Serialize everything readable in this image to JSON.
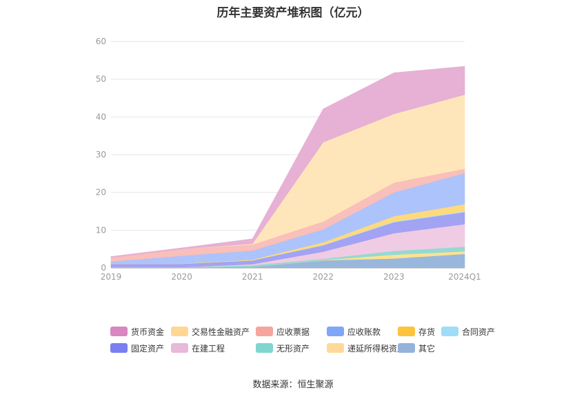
{
  "chart_data": {
    "type": "area",
    "stacked": true,
    "title": "历年主要资产堆积图（亿元）",
    "categories": [
      "2019",
      "2020",
      "2021",
      "2022",
      "2023",
      "2024Q1"
    ],
    "ylim": [
      0,
      60
    ],
    "yticks": [
      0,
      10,
      20,
      30,
      40,
      50,
      60
    ],
    "grid": true,
    "legend_position": "bottom",
    "series": [
      {
        "name": "其它",
        "color": "#93b3db",
        "values": [
          0.1,
          0.1,
          0.3,
          2.0,
          2.5,
          3.7
        ]
      },
      {
        "name": "递延所得税资产",
        "color": "#ffe08a",
        "values": [
          0.0,
          0.0,
          0.0,
          0.1,
          1.0,
          0.7
        ]
      },
      {
        "name": "无形资产",
        "color": "#8dd8d2",
        "values": [
          0.1,
          0.1,
          0.4,
          0.3,
          1.0,
          1.2
        ]
      },
      {
        "name": "在建工程",
        "color": "#eec9e1",
        "values": [
          0.0,
          0.0,
          0.3,
          1.9,
          4.7,
          6.0
        ]
      },
      {
        "name": "固定资产",
        "color": "#9d9ef2",
        "values": [
          0.9,
          0.9,
          1.0,
          1.7,
          2.9,
          3.2
        ]
      },
      {
        "name": "合同资产",
        "color": "#b4e2f5",
        "values": [
          0.0,
          0.0,
          0.0,
          0.1,
          0.2,
          0.2
        ]
      },
      {
        "name": "存货",
        "color": "#ffd876",
        "values": [
          0.1,
          0.1,
          0.2,
          0.7,
          1.4,
          1.9
        ]
      },
      {
        "name": "应收账款",
        "color": "#a9c0fb",
        "values": [
          0.5,
          2.0,
          2.4,
          3.4,
          6.3,
          8.2
        ]
      },
      {
        "name": "应收票据",
        "color": "#f9bcb6",
        "values": [
          1.0,
          1.8,
          1.6,
          2.1,
          2.6,
          1.2
        ]
      },
      {
        "name": "交易性金融资产",
        "color": "#ffe5b6",
        "values": [
          0.0,
          0.0,
          0.2,
          21.0,
          18.2,
          19.6
        ]
      },
      {
        "name": "货币资金",
        "color": "#e6acd3",
        "values": [
          0.3,
          0.3,
          1.3,
          8.8,
          10.9,
          7.5
        ]
      }
    ],
    "legend_order": [
      "货币资金",
      "交易性金融资产",
      "应收票据",
      "应收账款",
      "存货",
      "合同资产",
      "固定资产",
      "在建工程",
      "无形资产",
      "递延所得税资产",
      "其它"
    ],
    "legend_colors": {
      "货币资金": "#da86c0",
      "交易性金融资产": "#ffd694",
      "应收票据": "#f5a59c",
      "应收账款": "#80a6f8",
      "存货": "#fdc33d",
      "合同资产": "#9edcf7",
      "固定资产": "#7a7ef0",
      "在建工程": "#e8b9d8",
      "无形资产": "#7fd5cf",
      "递延所得税资产": "#ffd99a",
      "其它": "#94b3db"
    }
  },
  "source_text": "数据来源：恒生聚源"
}
